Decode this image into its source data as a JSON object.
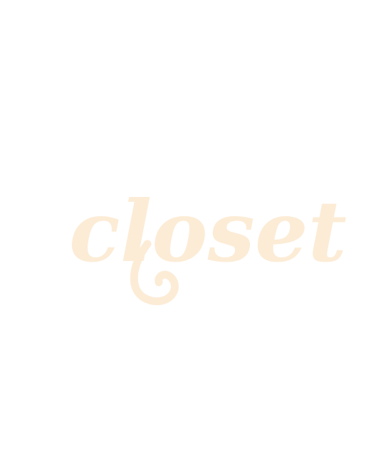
{
  "logo": {
    "text": "closet",
    "color": "#fcecd6"
  },
  "colors": {
    "background": "#ffffff"
  }
}
